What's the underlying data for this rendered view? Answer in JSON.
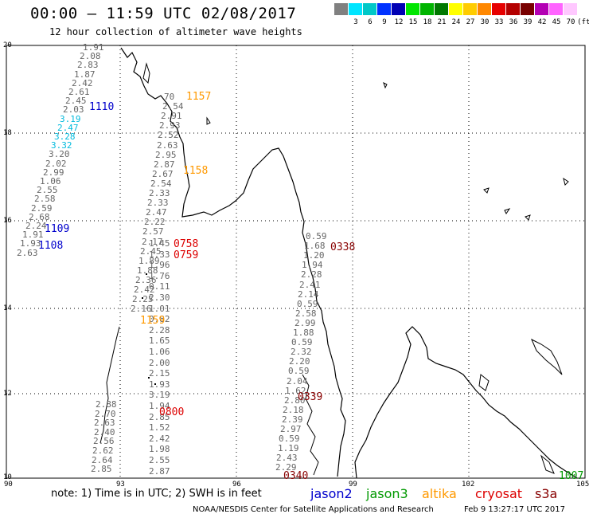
{
  "header": {
    "title": "00:00 — 11:59 UTC 02/08/2017",
    "subtitle": "12 hour collection of altimeter wave heights"
  },
  "color_scale": {
    "unit": "(ft)",
    "levels": [
      {
        "label": "",
        "color": "#808080"
      },
      {
        "label": "3",
        "color": "#00e5ff"
      },
      {
        "label": "6",
        "color": "#00c8c8"
      },
      {
        "label": "9",
        "color": "#0032ff"
      },
      {
        "label": "12",
        "color": "#0000b4"
      },
      {
        "label": "15",
        "color": "#00e600"
      },
      {
        "label": "18",
        "color": "#00b400"
      },
      {
        "label": "21",
        "color": "#007800"
      },
      {
        "label": "24",
        "color": "#ffff00"
      },
      {
        "label": "27",
        "color": "#ffcc00"
      },
      {
        "label": "30",
        "color": "#ff8800"
      },
      {
        "label": "33",
        "color": "#e60000"
      },
      {
        "label": "36",
        "color": "#b40000"
      },
      {
        "label": "39",
        "color": "#780000"
      },
      {
        "label": "42",
        "color": "#b400b4"
      },
      {
        "label": "45",
        "color": "#ff64ff"
      },
      {
        "label": "70",
        "color": "#ffc8ff"
      }
    ]
  },
  "axes": {
    "lat_labels": [
      "20",
      "18",
      "16",
      "14",
      "12",
      "10"
    ],
    "lon_labels": [
      "90",
      "93",
      "96",
      "99",
      "102",
      "105"
    ]
  },
  "footer": {
    "note": "note:  1) Time is in UTC;  2) SWH is in feet",
    "satellites": [
      {
        "name": "jason2",
        "color": "#0000cc"
      },
      {
        "name": "jason3",
        "color": "#009900"
      },
      {
        "name": "altika",
        "color": "#ff9900"
      },
      {
        "name": "cryosat",
        "color": "#dd0000"
      },
      {
        "name": "s3a",
        "color": "#880000"
      }
    ],
    "credit": "NOAA/NESDIS Center for Satellite Applications and Research",
    "timestamp": "Feb  9 13:27:17 UTC 2017"
  },
  "passes": [
    {
      "time": "1110",
      "color": "#0000cc"
    },
    {
      "time": "1109",
      "color": "#0000cc"
    },
    {
      "time": "1108",
      "color": "#0000cc"
    },
    {
      "time": "1157",
      "color": "#ff9900"
    },
    {
      "time": "1158",
      "color": "#ff9900"
    },
    {
      "time": "1159",
      "color": "#ff9900"
    },
    {
      "time": "0758",
      "color": "#dd0000"
    },
    {
      "time": "0759",
      "color": "#dd0000"
    },
    {
      "time": "0800",
      "color": "#dd0000"
    },
    {
      "time": "0338",
      "color": "#880000"
    },
    {
      "time": "0339",
      "color": "#880000"
    },
    {
      "time": "0340",
      "color": "#880000"
    },
    {
      "time": "1007",
      "color": "#009900"
    }
  ],
  "wave_tracks": [
    {
      "name": "west-track",
      "color": "#666666",
      "cyan": [
        8,
        9,
        10,
        11
      ],
      "values": [
        "1.91",
        "2.08",
        "2.83",
        "1.87",
        "2.42",
        "2.61",
        "2.45",
        "2.03",
        "3.19",
        "2.47",
        "3.28",
        "3.32",
        "3.20",
        "2.02",
        "2.99",
        "1.06",
        "2.55",
        "2.58",
        "2.59",
        "2.68",
        "2.24",
        "1.91",
        "1.93",
        "2.63"
      ]
    },
    {
      "name": "mid-track-north",
      "color": "#666666",
      "cyan": [],
      "values": [
        "70",
        "2.54",
        "2.91",
        "2.93",
        "2.52",
        "2.63",
        "2.95",
        "2.87",
        "2.67",
        "2.54",
        "2.33",
        "2.33",
        "2.47",
        "2.22",
        "2.57",
        "2.17",
        "2.45",
        "1.89",
        "1.88",
        "2.36",
        "2.42",
        "2.25",
        "2.16"
      ]
    },
    {
      "name": "mid-track-east",
      "color": "#666666",
      "cyan": [],
      "values": [
        "1.45",
        "1.33",
        "1.96",
        "1.76",
        "0.11",
        "2.30",
        "1.01",
        "0.82",
        "2.28",
        "1.65",
        "1.06",
        "2.00",
        "2.15",
        "1.93",
        "3.19",
        "1.94",
        "2.85",
        "1.52",
        "2.42",
        "1.98",
        "2.55",
        "2.87"
      ]
    },
    {
      "name": "mid-track-south",
      "color": "#666666",
      "cyan": [],
      "values": [
        "2.88",
        "2.70",
        "2.63",
        "2.40",
        "2.56",
        "2.62",
        "2.64",
        "2.85"
      ]
    },
    {
      "name": "east-track",
      "color": "#666666",
      "cyan": [],
      "values": [
        "0.59",
        "1.68",
        "1.20",
        "1.94",
        "2.28",
        "2.41",
        "2.14",
        "0.59",
        "2.58",
        "2.99",
        "1.88",
        "0.59",
        "2.32",
        "2.20",
        "0.59",
        "2.04",
        "1.62",
        "2.80",
        "2.18",
        "2.39",
        "2.97",
        "0.59",
        "1.19",
        "2.43",
        "2.29"
      ]
    }
  ]
}
